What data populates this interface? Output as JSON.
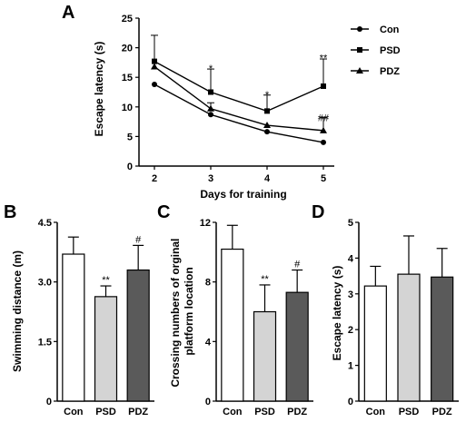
{
  "panel_labels": [
    "A",
    "B",
    "C",
    "D"
  ],
  "chart_data": [
    {
      "type": "line",
      "label": "A",
      "xlabel": "Days for training",
      "ylabel": "Escape latency (s)",
      "x": [
        2,
        3,
        4,
        5
      ],
      "ylim": [
        0,
        25
      ],
      "yticks": [
        0,
        5,
        10,
        15,
        20,
        25
      ],
      "legend_position": "top-right",
      "series": [
        {
          "name": "Con",
          "marker": "circle",
          "values": [
            13.8,
            8.7,
            5.8,
            4.0
          ],
          "errors": [
            0,
            0,
            0,
            0
          ]
        },
        {
          "name": "PSD",
          "marker": "square",
          "values": [
            17.7,
            12.5,
            9.3,
            13.5
          ],
          "errors": [
            4.4,
            3.9,
            2.7,
            4.6
          ]
        },
        {
          "name": "PDZ",
          "marker": "triangle",
          "values": [
            16.8,
            9.7,
            6.9,
            6.0
          ],
          "errors": [
            0,
            1.0,
            0,
            2.2
          ]
        }
      ],
      "annotations": [
        {
          "x": 3,
          "text": "*",
          "y": 16.9
        },
        {
          "x": 4,
          "text": "*",
          "y": 12.4
        },
        {
          "x": 5,
          "text": "**",
          "y": 18.6
        },
        {
          "x": 5,
          "text": "##",
          "y": 8.5
        }
      ]
    },
    {
      "type": "bar",
      "label": "B",
      "ylabel": "Swimming distance (m)",
      "categories": [
        "Con",
        "PSD",
        "PDZ"
      ],
      "values": [
        3.7,
        2.63,
        3.3
      ],
      "errors": [
        0.43,
        0.27,
        0.62
      ],
      "colors": [
        "#ffffff",
        "#d4d4d4",
        "#5a5a5a"
      ],
      "ylim": [
        0,
        4.5
      ],
      "yticks": [
        "0",
        "1.5",
        "3.0",
        "4.5"
      ],
      "annotations": [
        "",
        "**",
        "#"
      ]
    },
    {
      "type": "bar",
      "label": "C",
      "ylabel": "Crossing numbers of orginal platform location",
      "categories": [
        "Con",
        "PSD",
        "PDZ"
      ],
      "values": [
        10.2,
        6.0,
        7.3
      ],
      "errors": [
        1.6,
        1.8,
        1.5
      ],
      "colors": [
        "#ffffff",
        "#d4d4d4",
        "#5a5a5a"
      ],
      "ylim": [
        0,
        12
      ],
      "yticks": [
        "0",
        "4",
        "8",
        "12"
      ],
      "annotations": [
        "",
        "**",
        "#"
      ]
    },
    {
      "type": "bar",
      "label": "D",
      "ylabel": "Escape latency (s)",
      "categories": [
        "Con",
        "PSD",
        "PDZ"
      ],
      "values": [
        3.22,
        3.55,
        3.47
      ],
      "errors": [
        0.55,
        1.07,
        0.8
      ],
      "colors": [
        "#ffffff",
        "#d4d4d4",
        "#5a5a5a"
      ],
      "ylim": [
        0,
        5
      ],
      "yticks": [
        "0",
        "1",
        "2",
        "3",
        "4",
        "5"
      ],
      "annotations": [
        "",
        "",
        ""
      ]
    }
  ]
}
